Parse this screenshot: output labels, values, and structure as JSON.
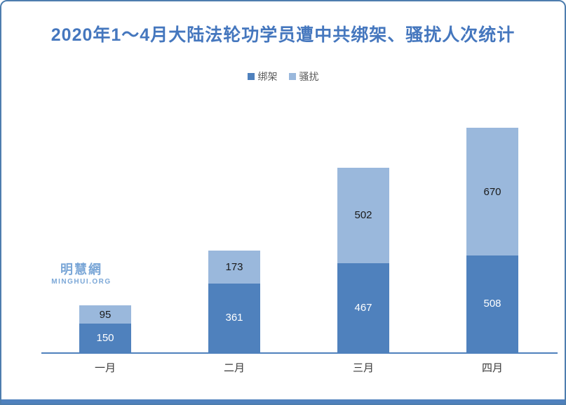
{
  "title": "2020年1～4月大陆法轮功学员遭中共绑架、骚扰人次统计",
  "watermark": {
    "cn": "明慧網",
    "en": "MINGHUI.ORG"
  },
  "colors": {
    "title": "#4577be",
    "frame_border": "#4d7dae",
    "bottom_bar": "#4f81bd",
    "axis": "#4f81bd",
    "legend_text": "#595959",
    "watermark": "#7ba7d7"
  },
  "chart_data": {
    "type": "bar",
    "stacked": true,
    "title": "2020年1～4月大陆法轮功学员遭中共绑架、骚扰人次统计",
    "categories": [
      "一月",
      "二月",
      "三月",
      "四月"
    ],
    "series": [
      {
        "name": "绑架",
        "color": "#4f81bd",
        "label_color": "#ffffff",
        "values": [
          150,
          361,
          467,
          508
        ]
      },
      {
        "name": "骚扰",
        "color": "#9ab8dc",
        "label_color": "#1a1a1a",
        "values": [
          95,
          173,
          502,
          670
        ]
      }
    ],
    "totals": [
      245,
      534,
      969,
      1178
    ],
    "legend_position": "top-center",
    "grid": false,
    "xlabel": "",
    "ylabel": "",
    "ylim": [
      0,
      1325
    ],
    "data_labels": "inside-center"
  }
}
